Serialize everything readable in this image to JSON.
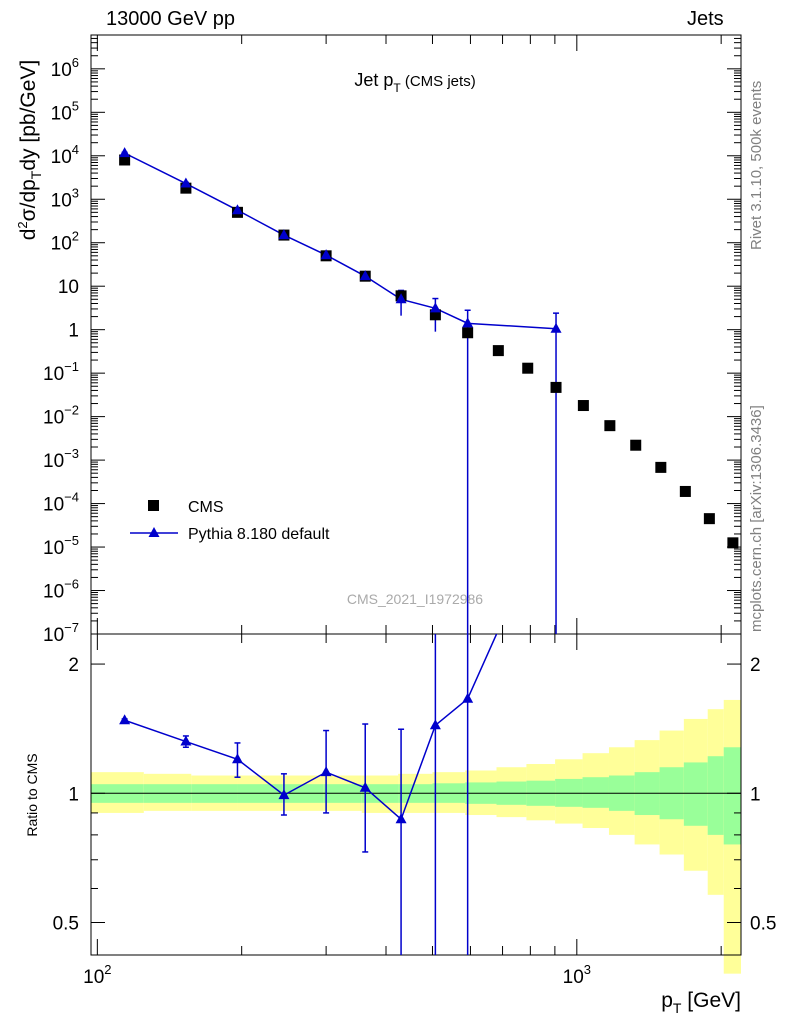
{
  "header": {
    "left": "13000 GeV pp",
    "right": "Jets"
  },
  "sidebar": {
    "rivet": "Rivet 3.1.10,  500k events",
    "source": "mcplots.cern.ch [arXiv:1306.3436]"
  },
  "chart_data": [
    {
      "type": "scatter",
      "title": "Jet p_T (CMS jets)",
      "title_main": "Jet p",
      "title_sub": "T",
      "title_extra": "(CMS jets)",
      "xlabel": "p_T [GeV]",
      "ylabel": "d²σ/dp_T dy [pb/GeV]",
      "x_scale": "log",
      "y_scale": "log",
      "xlim": [
        97,
        2200
      ],
      "ylim": [
        1e-07,
        6000000.0
      ],
      "watermark": "CMS_2021_I1972986",
      "legend_position": "bottom-left",
      "y_tick_labels": [
        "10⁻⁷",
        "10⁻⁶",
        "10⁻⁵",
        "10⁻⁴",
        "10⁻³",
        "10⁻²",
        "10⁻¹",
        "1",
        "10",
        "10²",
        "10³",
        "10⁴",
        "10⁵",
        "10⁶"
      ],
      "x_tick_labels": [
        "10²",
        "10³"
      ],
      "series": [
        {
          "name": "CMS",
          "marker": "square",
          "color": "#000000",
          "x": [
            114,
            153,
            196,
            245,
            300,
            362,
            430,
            507,
            592,
            686,
            790,
            905,
            1032,
            1172,
            1327,
            1497,
            1684,
            1890,
            2116
          ],
          "y": [
            8000,
            1800,
            500,
            150,
            50,
            17,
            6,
            2.2,
            0.85,
            0.33,
            0.13,
            0.047,
            0.018,
            0.0062,
            0.0022,
            0.00068,
            0.00019,
            4.5e-05,
            1.25e-05
          ]
        },
        {
          "name": "Pythia 8.180 default",
          "marker": "triangle",
          "color": "#0000cc",
          "x": [
            114,
            153,
            196,
            245,
            300,
            362,
            430,
            507,
            592,
            905
          ],
          "y": [
            11500,
            2300,
            560,
            150,
            52,
            17,
            5,
            3.1,
            1.4,
            1.05
          ],
          "y_low": [
            11000,
            2150,
            510,
            140,
            48,
            13,
            2.1,
            0.9,
            1e-08,
            1e-08
          ],
          "y_high": [
            12000,
            2450,
            610,
            160,
            56,
            21,
            8,
            5.2,
            2.8,
            2.4
          ]
        }
      ]
    },
    {
      "type": "line",
      "ylabel": "Ratio to CMS",
      "y_scale": "log",
      "ylim": [
        0.42,
        2.35
      ],
      "y_tick_labels": [
        "0.5",
        "1",
        "2"
      ],
      "reference_line": 1,
      "bands": {
        "edges": [
          97,
          125,
          157,
          196,
          243,
          296,
          356,
          424,
          500,
          585,
          680,
          785,
          901,
          1028,
          1167,
          1320,
          1488,
          1672,
          1875,
          2025,
          2200
        ],
        "green_low": [
          0.95,
          0.95,
          0.95,
          0.95,
          0.95,
          0.95,
          0.95,
          0.95,
          0.95,
          0.945,
          0.94,
          0.935,
          0.93,
          0.925,
          0.91,
          0.89,
          0.87,
          0.84,
          0.8,
          0.76
        ],
        "green_high": [
          1.05,
          1.05,
          1.05,
          1.05,
          1.05,
          1.05,
          1.05,
          1.05,
          1.055,
          1.06,
          1.065,
          1.07,
          1.08,
          1.09,
          1.1,
          1.12,
          1.15,
          1.18,
          1.22,
          1.28
        ],
        "yellow_low": [
          0.9,
          0.91,
          0.91,
          0.91,
          0.91,
          0.91,
          0.9,
          0.9,
          0.9,
          0.89,
          0.88,
          0.865,
          0.85,
          0.83,
          0.8,
          0.76,
          0.72,
          0.66,
          0.58,
          0.38
        ],
        "yellow_high": [
          1.12,
          1.11,
          1.1,
          1.1,
          1.1,
          1.1,
          1.1,
          1.11,
          1.12,
          1.13,
          1.15,
          1.17,
          1.2,
          1.24,
          1.28,
          1.33,
          1.4,
          1.49,
          1.57,
          1.65
        ],
        "green_color": "#99ff99",
        "yellow_color": "#ffff99"
      },
      "series": [
        {
          "name": "Pythia 8.180 default",
          "color": "#0000cc",
          "x": [
            114,
            153,
            196,
            245,
            300,
            362,
            430,
            507,
            592,
            686
          ],
          "y": [
            1.48,
            1.32,
            1.2,
            0.99,
            1.12,
            1.03,
            0.87,
            1.44,
            1.66,
            2.4
          ],
          "y_low": [
            1.47,
            1.28,
            1.09,
            0.89,
            0.9,
            0.73,
            0.4,
            0.4,
            0.4,
            2.4
          ],
          "y_high": [
            1.49,
            1.36,
            1.31,
            1.11,
            1.4,
            1.45,
            1.41,
            2.35,
            2.35,
            2.4
          ]
        }
      ]
    }
  ]
}
